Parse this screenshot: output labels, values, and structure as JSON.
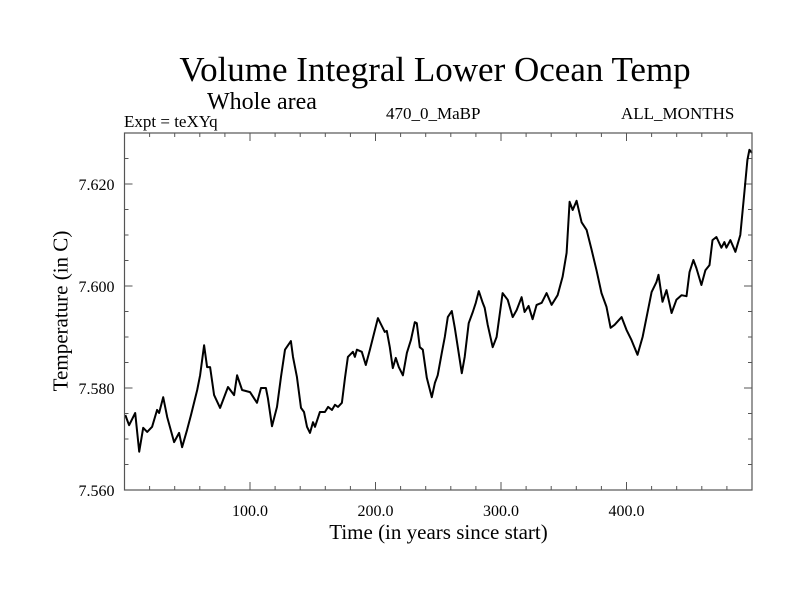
{
  "header": {
    "title": "Volume Integral Lower Ocean Temp",
    "subtitle": "Whole area",
    "expt_label": "Expt = teXYq",
    "center_label": "470_0_MaBP",
    "right_label": "ALL_MONTHS"
  },
  "chart_data": {
    "type": "line",
    "title": "Volume Integral Lower Ocean Temp",
    "subtitle": "Whole area",
    "annotations": [
      "Expt = teXYq",
      "470_0_MaBP",
      "ALL_MONTHS"
    ],
    "xlabel": "Time (in years since start)",
    "ylabel": "Temperature (in C)",
    "xlim": [
      0,
      500
    ],
    "ylim": [
      7.56,
      7.63
    ],
    "x_ticks": [
      100,
      200,
      300,
      400
    ],
    "x_tick_labels": [
      "100.0",
      "200.0",
      "300.0",
      "400.0"
    ],
    "x_minor_step": 20,
    "y_ticks": [
      7.56,
      7.58,
      7.6,
      7.62
    ],
    "y_tick_labels": [
      "7.560",
      "7.580",
      "7.600",
      "7.620"
    ],
    "y_minor_step": 0.005,
    "grid": false,
    "legend": "none",
    "series": [
      {
        "name": "Lower Ocean Temp",
        "color": "#000000",
        "x": [
          0.6,
          3.7,
          8.5,
          11.7,
          14.9,
          18.1,
          22.0,
          26.0,
          27.6,
          30.8,
          34.0,
          39.5,
          43.5,
          45.9,
          49.9,
          53.0,
          57.9,
          60.2,
          63.4,
          65.8,
          68.2,
          71.4,
          76.2,
          82.5,
          87.3,
          89.7,
          93.7,
          100.0,
          105.6,
          108.8,
          112.7,
          114.3,
          117.5,
          121.5,
          124.7,
          127.9,
          132.6,
          134.3,
          137.4,
          140.6,
          143.0,
          145.4,
          147.8,
          150.2,
          151.8,
          155.7,
          159.7,
          162.2,
          165.3,
          167.7,
          170.1,
          173.2,
          175.7,
          178.0,
          182.0,
          183.6,
          185.2,
          189.1,
          192.3,
          195.5,
          201.9,
          207.4,
          209.0,
          211.4,
          213.8,
          216.2,
          218.6,
          221.8,
          225.0,
          228.2,
          231.3,
          232.9,
          235.3,
          237.7,
          240.9,
          244.9,
          247.3,
          249.6,
          252.8,
          255.2,
          257.6,
          260.8,
          263.2,
          265.6,
          268.8,
          271.1,
          274.3,
          277.5,
          279.9,
          282.3,
          285.4,
          287.0,
          289.4,
          293.4,
          296.5,
          298.9,
          301.3,
          305.3,
          309.3,
          312.5,
          316.4,
          318.8,
          322.0,
          325.2,
          328.4,
          332.4,
          336.3,
          340.3,
          345.1,
          349.1,
          352.3,
          354.7,
          357.1,
          360.2,
          364.2,
          368.2,
          372.2,
          376.1,
          380.1,
          384.1,
          387.3,
          390.5,
          396.1,
          400.0,
          404.0,
          408.8,
          412.8,
          416.0,
          420.0,
          423.9,
          425.5,
          428.7,
          431.9,
          435.9,
          439.8,
          443.8,
          447.8,
          450.2,
          453.3,
          455.7,
          459.7,
          462.9,
          466.1,
          468.5,
          471.6,
          475.6,
          478.0,
          479.6,
          482.8,
          486.8,
          490.7,
          493.9,
          496.3,
          497.9,
          500.0
        ],
        "y": [
          7.5747,
          7.5727,
          7.5751,
          7.5675,
          7.5722,
          7.5714,
          7.5724,
          7.5757,
          7.5751,
          7.5782,
          7.5743,
          7.5694,
          7.5712,
          7.5684,
          7.5718,
          7.5747,
          7.5796,
          7.5825,
          7.5884,
          7.5841,
          7.5841,
          7.5786,
          7.5761,
          7.5802,
          7.5786,
          7.5825,
          7.5796,
          7.5792,
          7.5771,
          7.58,
          7.58,
          7.578,
          7.5725,
          7.5763,
          7.5822,
          7.5875,
          7.5892,
          7.5861,
          7.5822,
          7.5761,
          7.5753,
          7.5724,
          7.5712,
          7.5733,
          7.5724,
          7.5753,
          7.5753,
          7.5763,
          7.5757,
          7.5767,
          7.5763,
          7.5771,
          7.582,
          7.5861,
          7.5871,
          7.5861,
          7.5875,
          7.5871,
          7.5845,
          7.5875,
          7.5937,
          7.591,
          7.5912,
          7.588,
          7.5839,
          7.5859,
          7.5841,
          7.5825,
          7.5869,
          7.5894,
          7.5929,
          7.5927,
          7.588,
          7.5875,
          7.582,
          7.5782,
          7.581,
          7.5825,
          7.5869,
          7.59,
          7.5939,
          7.5951,
          7.5918,
          7.588,
          7.5829,
          7.5861,
          7.5927,
          7.5949,
          7.5967,
          7.599,
          7.5967,
          7.5957,
          7.5924,
          7.588,
          7.59,
          7.5943,
          7.5986,
          7.5973,
          7.5939,
          7.5953,
          7.5978,
          7.5949,
          7.5961,
          7.5935,
          7.5963,
          7.5967,
          7.5986,
          7.5963,
          7.5982,
          7.6018,
          7.6065,
          7.6165,
          7.6149,
          7.6167,
          7.6125,
          7.611,
          7.6071,
          7.6031,
          7.5986,
          7.5959,
          7.5918,
          7.5924,
          7.5939,
          7.5914,
          7.5894,
          7.5865,
          7.59,
          7.5939,
          7.5988,
          7.6008,
          7.6022,
          7.5969,
          7.5992,
          7.5947,
          7.5973,
          7.5982,
          7.598,
          7.6027,
          7.6051,
          7.6035,
          7.6002,
          7.6031,
          7.6041,
          7.609,
          7.6096,
          7.6075,
          7.6086,
          7.6075,
          7.609,
          7.6067,
          7.61,
          7.6182,
          7.6247,
          7.6267,
          7.6261
        ]
      }
    ]
  }
}
